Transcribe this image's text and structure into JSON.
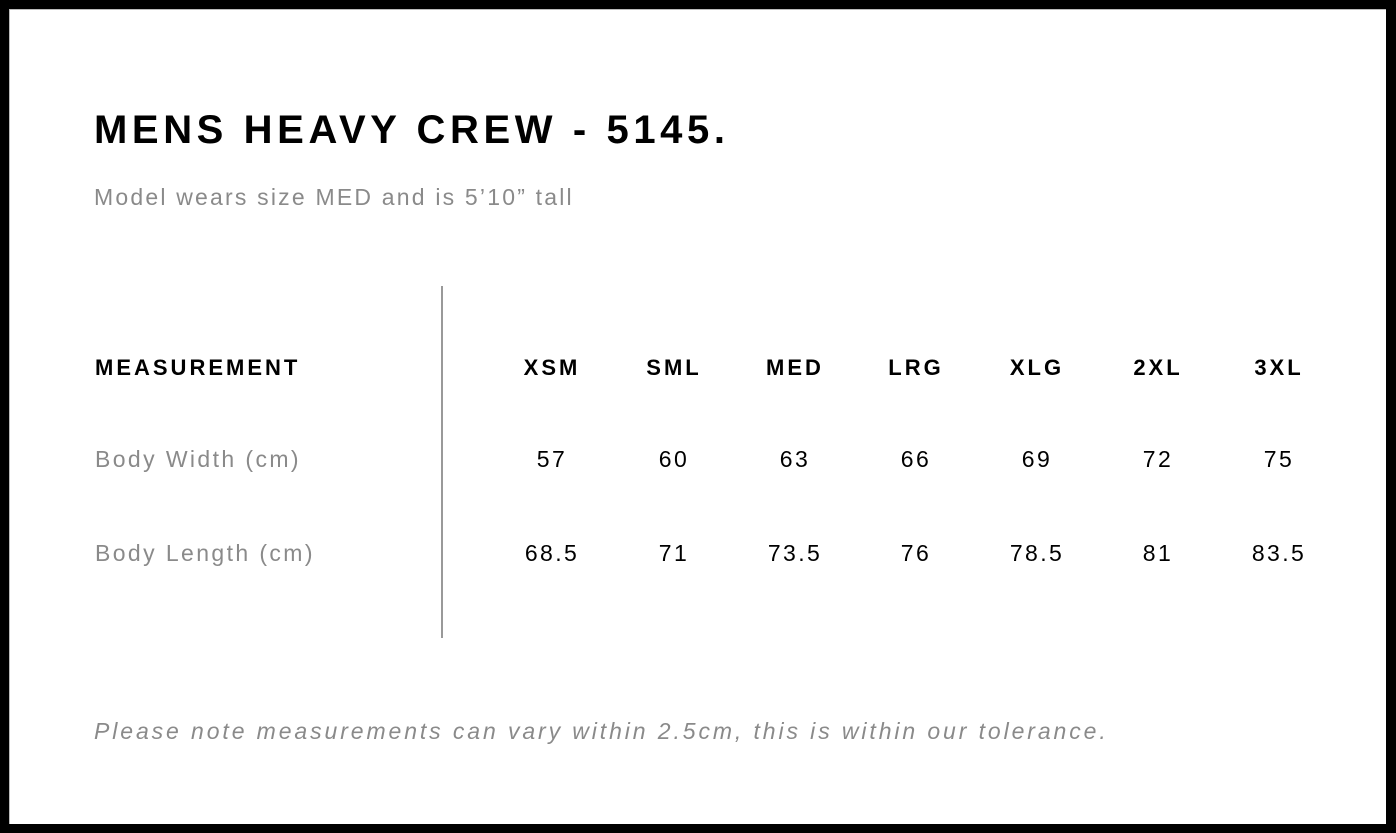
{
  "title": "MENS HEAVY CREW - 5145.",
  "subtitle": "Model wears size MED and is 5’10” tall",
  "table": {
    "header_label": "MEASUREMENT",
    "sizes": [
      "XSM",
      "SML",
      "MED",
      "LRG",
      "XLG",
      "2XL",
      "3XL"
    ],
    "rows": [
      {
        "label": "Body Width (cm)",
        "values": [
          "57",
          "60",
          "63",
          "66",
          "69",
          "72",
          "75"
        ]
      },
      {
        "label": "Body Length (cm)",
        "values": [
          "68.5",
          "71",
          "73.5",
          "76",
          "78.5",
          "81",
          "83.5"
        ]
      }
    ]
  },
  "note": "Please note measurements can vary within 2.5cm, this is within our tolerance."
}
